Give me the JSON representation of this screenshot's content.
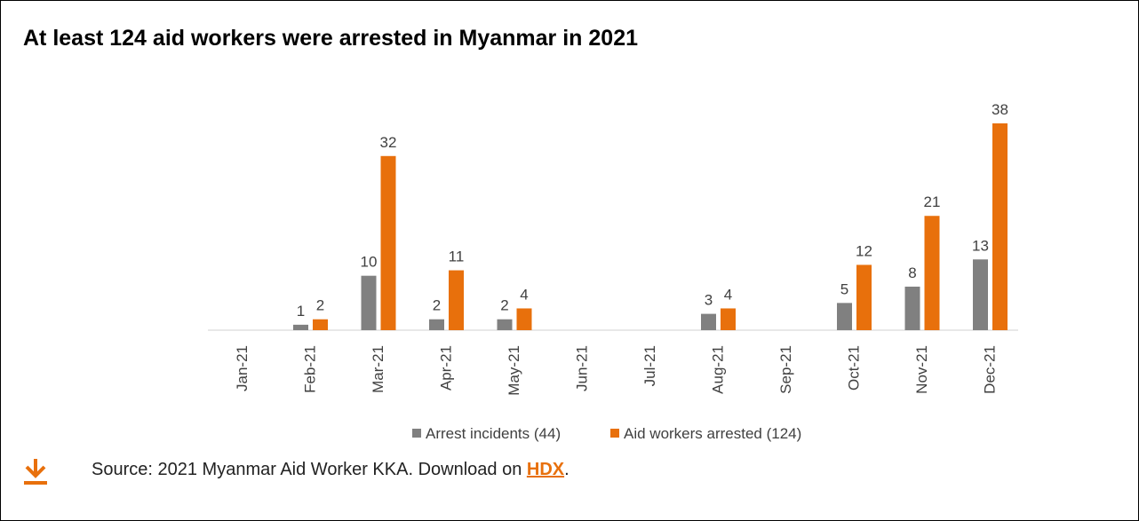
{
  "title": "At least 124 aid workers were arrested in Myanmar in 2021",
  "chart_data": {
    "type": "bar",
    "categories": [
      "Jan-21",
      "Feb-21",
      "Mar-21",
      "Apr-21",
      "May-21",
      "Jun-21",
      "Jul-21",
      "Aug-21",
      "Sep-21",
      "Oct-21",
      "Nov-21",
      "Dec-21"
    ],
    "series": [
      {
        "name": "Arrest incidents (44)",
        "color": "#808080",
        "values": [
          0,
          1,
          10,
          2,
          2,
          0,
          0,
          3,
          0,
          5,
          8,
          13
        ]
      },
      {
        "name": "Aid workers arrested (124)",
        "color": "#e8700c",
        "values": [
          0,
          2,
          32,
          11,
          4,
          0,
          0,
          4,
          0,
          12,
          21,
          38
        ]
      }
    ],
    "ylim": [
      0,
      38
    ],
    "grid": false,
    "legend_position": "bottom"
  },
  "footer": {
    "icon": "download-icon",
    "icon_color": "#e8700c",
    "source_prefix": "Source: 2021 Myanmar Aid Worker KKA. Download on ",
    "link_text": "HDX",
    "source_suffix": "."
  }
}
